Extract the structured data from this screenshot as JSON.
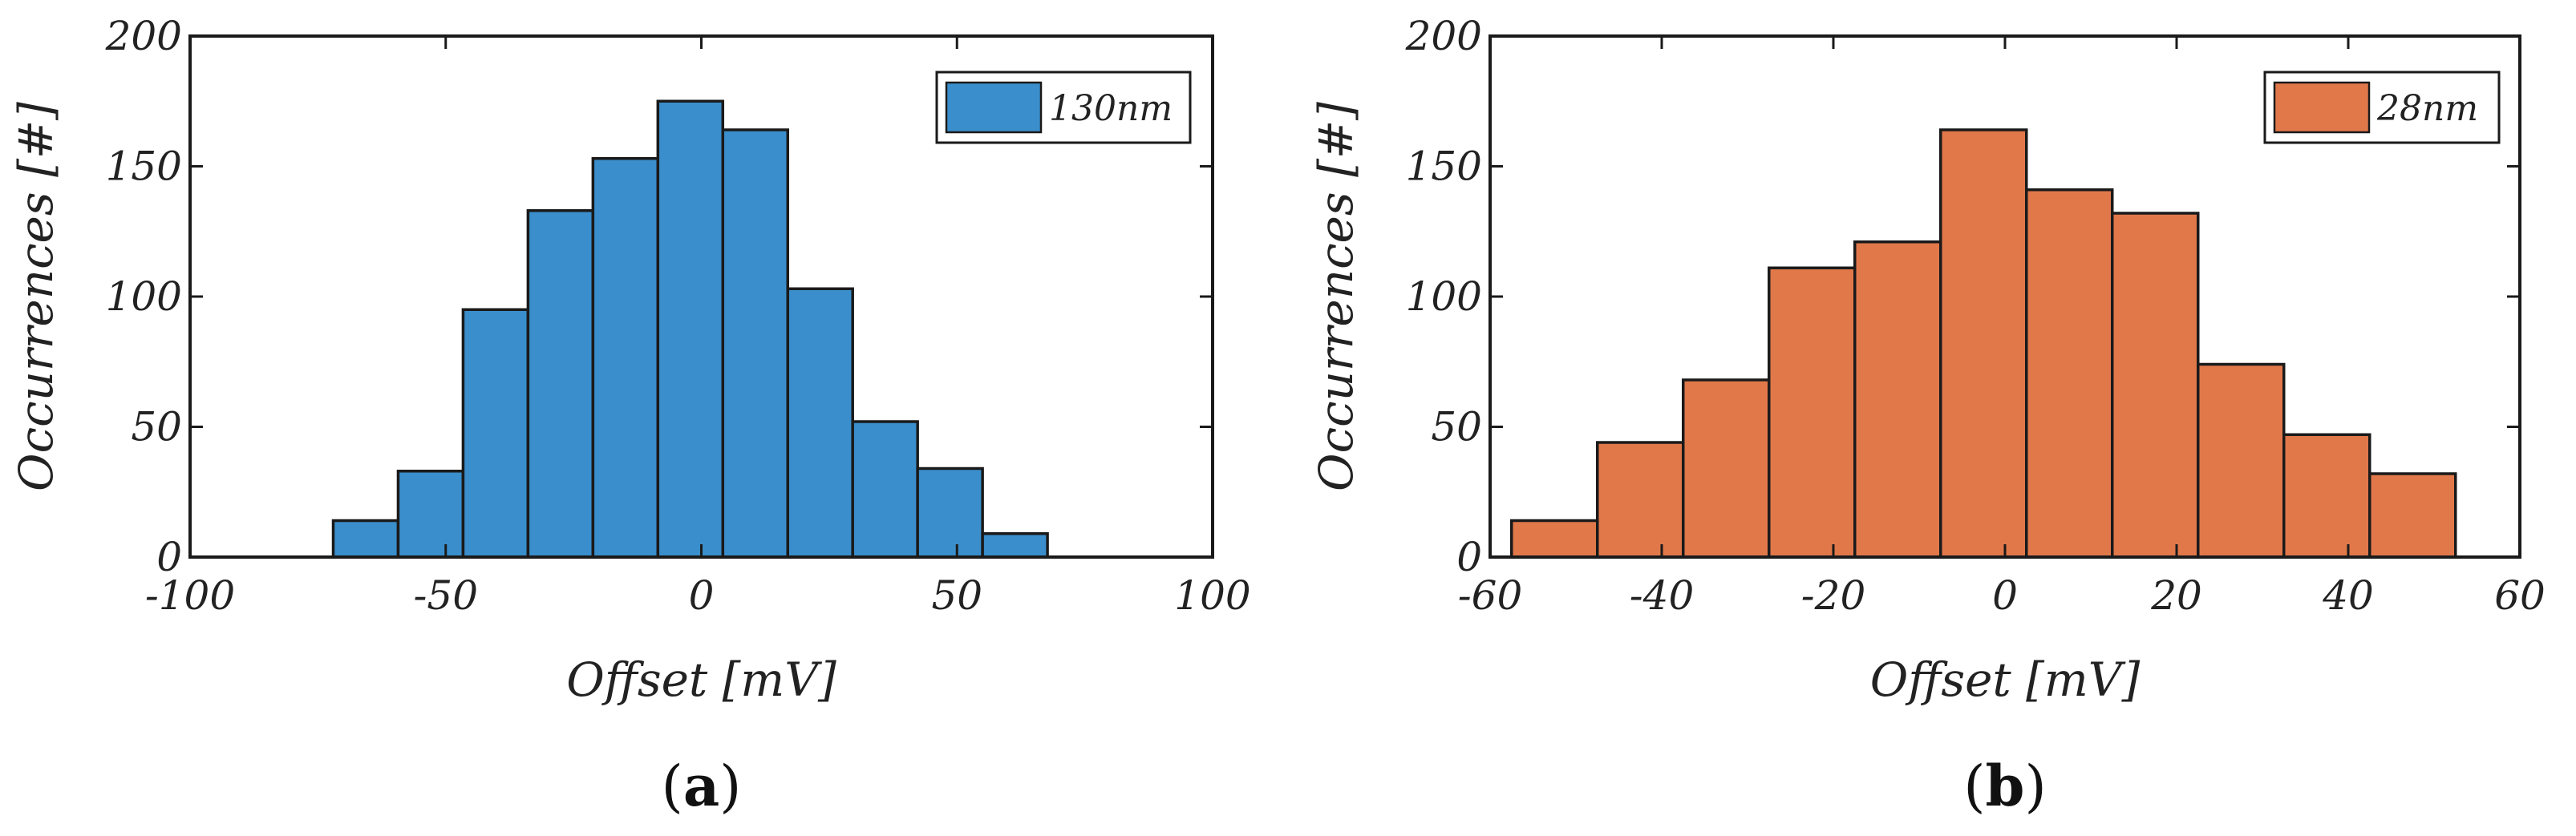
{
  "chart_data": [
    {
      "type": "bar",
      "histogram": true,
      "panel_label": "(a)",
      "panel_letter": "a",
      "xlabel": "Offset [mV]",
      "ylabel": "Occurrences [#]",
      "xlim": [
        -100,
        100
      ],
      "ylim": [
        0,
        200
      ],
      "xticks": [
        "-100",
        "-50",
        "0",
        "50",
        "100"
      ],
      "yticks": [
        "0",
        "50",
        "100",
        "150",
        "200"
      ],
      "legend": {
        "label": "130nm",
        "position": "top-right"
      },
      "color": "#3a8ecb",
      "bin_edges": [
        -72,
        -59.3,
        -46.6,
        -33.9,
        -21.2,
        -8.5,
        4.2,
        16.9,
        29.6,
        42.3,
        55,
        67.7
      ],
      "values": [
        14,
        33,
        95,
        133,
        153,
        175,
        164,
        103,
        52,
        34,
        9
      ]
    },
    {
      "type": "bar",
      "histogram": true,
      "panel_label": "(b)",
      "panel_letter": "b",
      "xlabel": "Offset [mV]",
      "ylabel": "Occurrences [#]",
      "xlim": [
        -60,
        60
      ],
      "ylim": [
        0,
        200
      ],
      "xticks": [
        "-60",
        "-40",
        "-20",
        "0",
        "20",
        "40",
        "60"
      ],
      "yticks": [
        "0",
        "50",
        "100",
        "150",
        "200"
      ],
      "legend": {
        "label": "28nm",
        "position": "top-right"
      },
      "color": "#e1784a",
      "bin_edges": [
        -57.5,
        -47.5,
        -37.5,
        -27.5,
        -17.5,
        -7.5,
        2.5,
        12.5,
        22.5,
        32.5,
        42.5,
        52.5
      ],
      "values": [
        14,
        44,
        68,
        111,
        121,
        164,
        141,
        132,
        74,
        47,
        32
      ]
    }
  ]
}
